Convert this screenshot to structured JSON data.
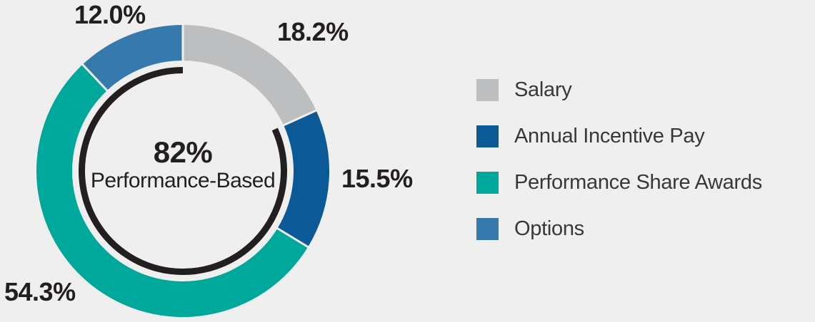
{
  "background_color": "#efefef",
  "text_color": "#231f20",
  "legend_text_color": "#383838",
  "chart_data": {
    "type": "pie",
    "variant": "donut",
    "direction": "clockwise",
    "start_angle_deg": 0,
    "legend_position": "right",
    "segments": [
      {
        "label": "Salary",
        "value": 18.2,
        "pct_label": "18.2%",
        "color": "#bcbec0",
        "performance_based": false
      },
      {
        "label": "Annual Incentive Pay",
        "value": 15.5,
        "pct_label": "15.5%",
        "color": "#0b5a97",
        "performance_based": true
      },
      {
        "label": "Performance Share Awards",
        "value": 54.3,
        "pct_label": "54.3%",
        "color": "#00a79b",
        "performance_based": true
      },
      {
        "label": "Options",
        "value": 12.0,
        "pct_label": "12.0%",
        "color": "#3579ad",
        "performance_based": true
      }
    ],
    "center": {
      "headline": "82%",
      "subline": "Performance-Based"
    },
    "performance_arc": {
      "value": 82,
      "label": "82% Performance-Based",
      "color": "#231f20"
    }
  }
}
